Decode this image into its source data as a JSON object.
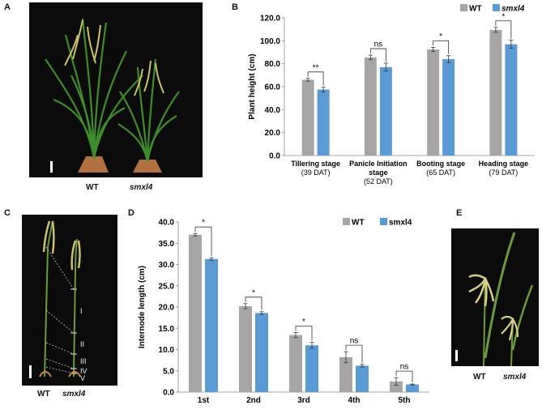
{
  "panels": {
    "A": {
      "letter": "A",
      "labels": [
        "WT",
        "smxl4"
      ]
    },
    "B": {
      "letter": "B"
    },
    "C": {
      "letter": "C",
      "labels": [
        "WT",
        "smxl4"
      ],
      "internode_marks": [
        "I",
        "II",
        "III",
        "IV",
        "V"
      ]
    },
    "D": {
      "letter": "D"
    },
    "E": {
      "letter": "E",
      "labels": [
        "WT",
        "smxl4"
      ]
    }
  },
  "colors": {
    "wt": "#a7a5a5",
    "mutant": "#5b9bd5",
    "photo_bg": "#0b0b0b"
  },
  "chart_data": [
    {
      "id": "B",
      "type": "bar",
      "ylabel": "Plant height (cm)",
      "ylim": [
        0,
        120
      ],
      "yticks": [
        "0.0",
        "20.0",
        "40.0",
        "60.0",
        "80.0",
        "100.0",
        "120.0"
      ],
      "categories": [
        [
          "Tillering stage",
          "(39 DAT)"
        ],
        [
          "Panicle Initiation",
          "stage",
          "(52 DAT)"
        ],
        [
          "Booting stage",
          "(65 DAT)"
        ],
        [
          "Heading stage",
          "(79 DAT)"
        ]
      ],
      "series": [
        {
          "name": "WT",
          "values": [
            66,
            85.5,
            92.5,
            109.5
          ],
          "errors": [
            1.2,
            2,
            1.8,
            2.2
          ]
        },
        {
          "name": "smxl4",
          "values": [
            57.5,
            77,
            84,
            97
          ],
          "errors": [
            2,
            3.5,
            3,
            3.5
          ]
        }
      ],
      "significance": [
        "**",
        "ns",
        "*",
        "*"
      ],
      "legend": "top-right"
    },
    {
      "id": "D",
      "type": "bar",
      "ylabel": "Internode  length (cm)",
      "ylim": [
        0,
        40
      ],
      "yticks": [
        "0.0",
        "5.0",
        "10.0",
        "15.0",
        "20.0",
        "25.0",
        "30.0",
        "35.0",
        "40.0"
      ],
      "categories": [
        "1st",
        "2nd",
        "3rd",
        "4th",
        "5th"
      ],
      "series": [
        {
          "name": "WT",
          "values": [
            37,
            20.2,
            13.4,
            8.2,
            2.5
          ],
          "errors": [
            0.3,
            0.6,
            0.6,
            1.3,
            0.9
          ]
        },
        {
          "name": "smxl4",
          "values": [
            31.3,
            18.6,
            11,
            6.2,
            1.8
          ],
          "errors": [
            0.3,
            0.3,
            0.7,
            0.3,
            0.1
          ]
        }
      ],
      "significance": [
        "*",
        "*",
        "*",
        "ns",
        "ns"
      ],
      "legend": "top-right"
    }
  ]
}
